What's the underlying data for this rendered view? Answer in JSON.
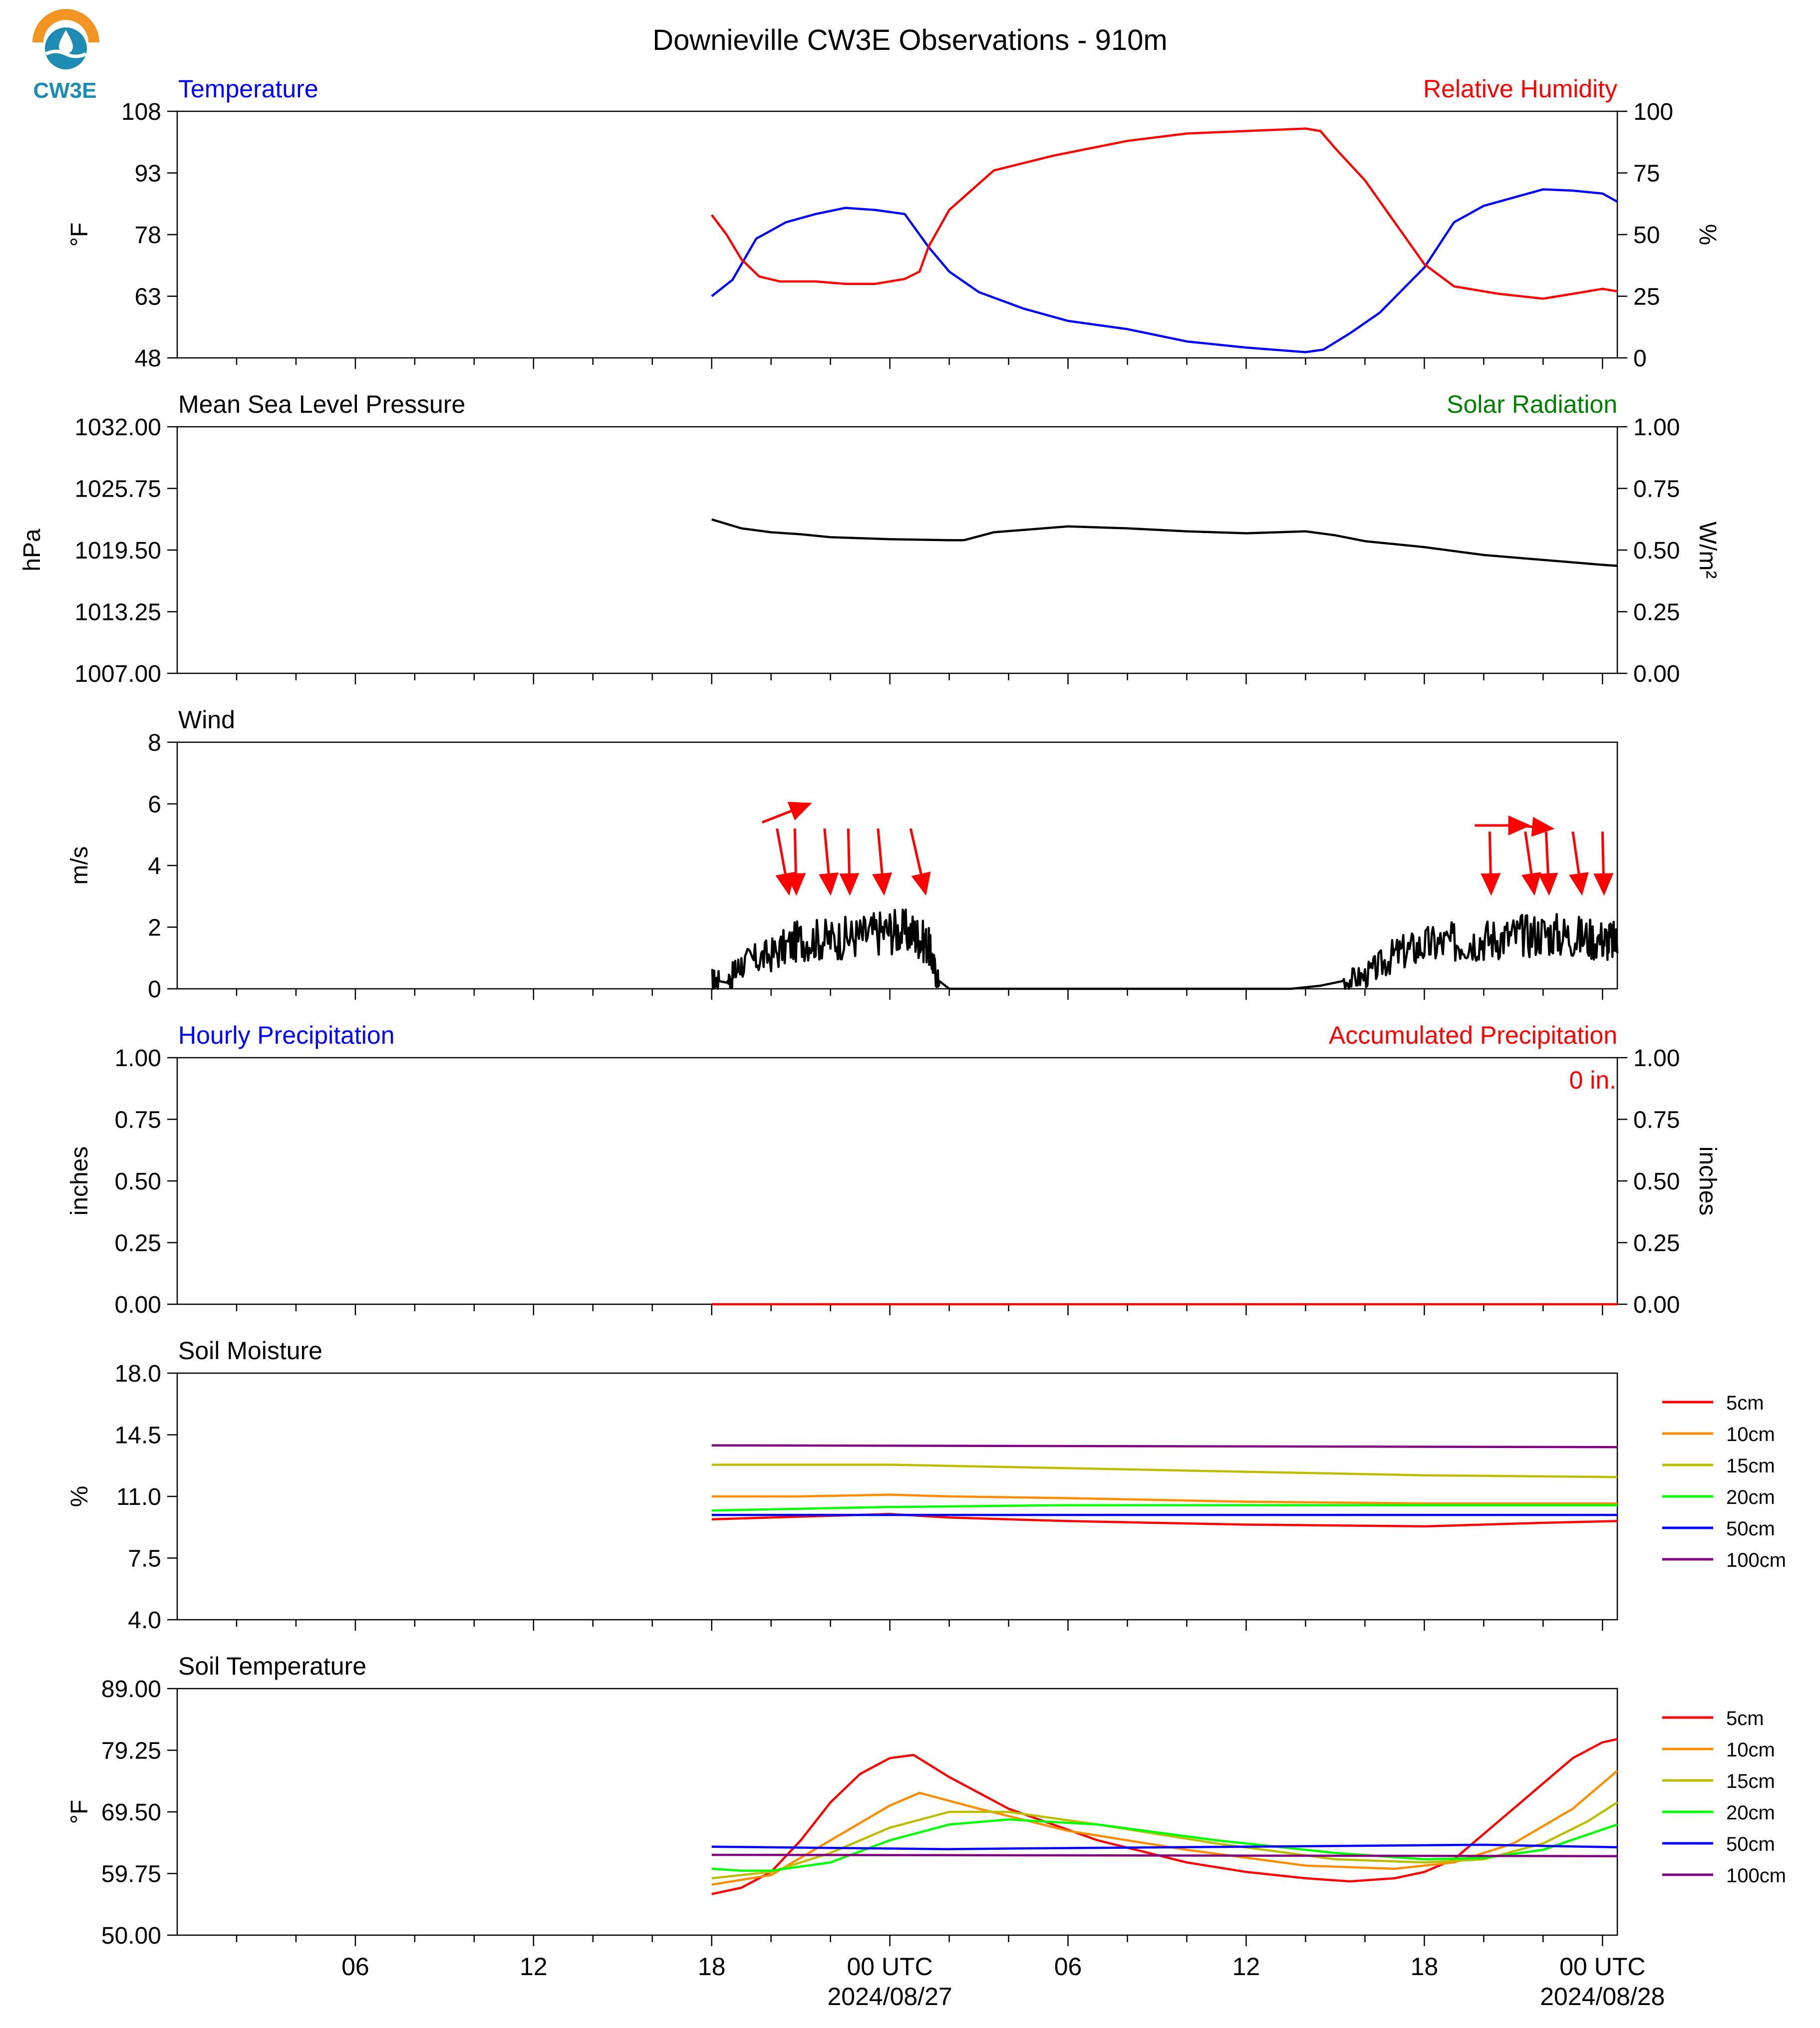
{
  "title": "Downieville CW3E Observations - 910m",
  "logo_text": "CW3E",
  "colors": {
    "temp": "#0000ff",
    "rh": "#ff0000",
    "black": "#000000",
    "solar": "#008000",
    "hourly": "#0000ff",
    "accum": "#ff0000",
    "arrow": "#ff0000",
    "d5": "#ff0000",
    "d10": "#ff8c00",
    "d15": "#bdbd00",
    "d20": "#00ff00",
    "d50": "#0000ff",
    "d100": "#800080",
    "logo_orange": "#f29424",
    "logo_blue": "#1d8bb2"
  },
  "x_axis": {
    "tick_labels": [
      "06",
      "12",
      "18",
      "00 UTC",
      "06",
      "12",
      "18",
      "00 UTC"
    ],
    "date_labels": [
      "2024/08/27",
      "2024/08/28"
    ]
  },
  "accum_label": "0 in.",
  "chart_data": [
    {
      "type": "line",
      "panel": "temperature-rh",
      "title_left": "Temperature",
      "title_right": "Relative Humidity",
      "ylabel": "°F",
      "ylabel_right": "%",
      "ylim": [
        48,
        108
      ],
      "yticks": [
        "108",
        "93",
        "78",
        "63",
        "48"
      ],
      "ylim_right": [
        0,
        100
      ],
      "yticks_right": [
        "100",
        "75",
        "50",
        "25",
        "0"
      ],
      "x_unit": "hours since 2024-08-26 00 UTC",
      "series": [
        {
          "name": "Temperature",
          "axis": "left",
          "x": [
            18,
            18.7,
            19.5,
            20.5,
            21.5,
            22.5,
            23.5,
            24.5,
            25.3,
            26,
            27,
            28.5,
            30,
            32,
            34,
            36,
            38,
            38.6,
            39.5,
            40.5,
            42,
            43,
            44,
            45,
            46,
            47,
            48,
            48.5
          ],
          "values": [
            63,
            67,
            77,
            81,
            83,
            84.5,
            84,
            83,
            75,
            69,
            64,
            60,
            57,
            55,
            52,
            50.5,
            49.4,
            50,
            54,
            59,
            70,
            81,
            85,
            87,
            89,
            88.7,
            88,
            86
          ]
        },
        {
          "name": "Relative Humidity",
          "axis": "right",
          "x": [
            18,
            18.5,
            19,
            19.6,
            20.3,
            21.5,
            22.5,
            23.5,
            24.5,
            25,
            25.3,
            26,
            27.5,
            29.5,
            32,
            34,
            36,
            38,
            38.5,
            39,
            40,
            41,
            42,
            43,
            44.5,
            46,
            47,
            48,
            48.5
          ],
          "values": [
            58,
            50,
            40,
            33,
            31,
            31,
            30,
            30,
            32,
            35,
            45,
            60,
            76,
            82,
            88,
            91,
            92,
            93,
            92,
            85,
            72,
            55,
            38,
            29,
            26,
            24,
            26,
            28,
            27
          ]
        }
      ]
    },
    {
      "type": "line",
      "panel": "pressure-solar",
      "title_left": "Mean Sea Level Pressure",
      "title_right": "Solar Radiation",
      "ylabel": "hPa",
      "ylabel_right": "W/m²",
      "ylim": [
        1007,
        1032
      ],
      "yticks": [
        "1032.00",
        "1025.75",
        "1019.50",
        "1013.25",
        "1007.00"
      ],
      "ylim_right": [
        0,
        1
      ],
      "yticks_right": [
        "1.00",
        "0.75",
        "0.50",
        "0.25",
        "0.00"
      ],
      "series": [
        {
          "name": "Mean Sea Level Pressure",
          "x": [
            18,
            19,
            20,
            21,
            22,
            24,
            26,
            26.5,
            27.5,
            30,
            32,
            34,
            36,
            38,
            39,
            40,
            42,
            44,
            46,
            48,
            48.5
          ],
          "values": [
            1022.6,
            1021.7,
            1021.3,
            1021.1,
            1020.8,
            1020.6,
            1020.5,
            1020.5,
            1021.3,
            1021.9,
            1021.7,
            1021.4,
            1021.2,
            1021.4,
            1021.0,
            1020.4,
            1019.8,
            1019.0,
            1018.5,
            1018.0,
            1017.9
          ]
        }
      ]
    },
    {
      "type": "line",
      "panel": "wind",
      "title_left": "Wind",
      "ylabel": "m/s",
      "ylim": [
        0,
        8
      ],
      "yticks": [
        "8",
        "6",
        "4",
        "2",
        "0"
      ],
      "series": [
        {
          "name": "Wind",
          "x": [
            18,
            18.5,
            19,
            20,
            21,
            22,
            23,
            24,
            24.8,
            25.3,
            25.6,
            26,
            29,
            32,
            35,
            37.5,
            38.5,
            39,
            40,
            41,
            42,
            43,
            44,
            45,
            46,
            47,
            48,
            48.5
          ],
          "values": [
            0.3,
            0.2,
            0.8,
            1.1,
            1.6,
            1.6,
            1.7,
            1.9,
            1.8,
            1.4,
            0.3,
            0,
            0,
            0,
            0,
            0,
            0.1,
            0.2,
            0.4,
            1.1,
            1.4,
            1.5,
            1.6,
            1.7,
            1.8,
            1.7,
            1.6,
            1.5
          ]
        }
      ],
      "barbs": [
        {
          "x": 19.7,
          "y_from": 5.4,
          "y_to": 6.0,
          "dx": 1.6
        },
        {
          "x": 20.2,
          "y_from": 5.2,
          "y_to": 3.1,
          "dx": 0.4
        },
        {
          "x": 20.8,
          "y_from": 5.2,
          "y_to": 3.1,
          "dx": 0.05
        },
        {
          "x": 21.8,
          "y_from": 5.2,
          "y_to": 3.1,
          "dx": 0.2
        },
        {
          "x": 22.6,
          "y_from": 5.2,
          "y_to": 3.1,
          "dx": 0.05
        },
        {
          "x": 23.6,
          "y_from": 5.2,
          "y_to": 3.1,
          "dx": 0.2
        },
        {
          "x": 24.7,
          "y_from": 5.2,
          "y_to": 3.1,
          "dx": 0.5
        },
        {
          "x": 18.5,
          "y_from": 5.4,
          "y_to": 6.0,
          "dx": 1.6,
          "skip": true
        },
        {
          "x": 43.7,
          "y_from": 5.3,
          "y_to": 5.3,
          "dx": 1.8
        },
        {
          "x": 45.1,
          "y_from": 5.3,
          "y_to": 5.2,
          "dx": 1.2
        },
        {
          "x": 44.2,
          "y_from": 5.1,
          "y_to": 3.1,
          "dx": 0.05
        },
        {
          "x": 45.4,
          "y_from": 5.1,
          "y_to": 3.1,
          "dx": 0.3
        },
        {
          "x": 46.1,
          "y_from": 5.1,
          "y_to": 3.1,
          "dx": 0.1
        },
        {
          "x": 47.0,
          "y_from": 5.1,
          "y_to": 3.1,
          "dx": 0.3
        },
        {
          "x": 48.0,
          "y_from": 5.1,
          "y_to": 3.1,
          "dx": 0.05
        }
      ]
    },
    {
      "type": "line",
      "panel": "precipitation",
      "title_left": "Hourly Precipitation",
      "title_right": "Accumulated Precipitation",
      "ylabel": "inches",
      "ylabel_right": "inches",
      "ylim": [
        0,
        1
      ],
      "yticks": [
        "1.00",
        "0.75",
        "0.50",
        "0.25",
        "0.00"
      ],
      "ylim_right": [
        0,
        1
      ],
      "yticks_right": [
        "1.00",
        "0.75",
        "0.50",
        "0.25",
        "0.00"
      ],
      "series": [
        {
          "name": "Accumulated Precipitation",
          "x": [
            18,
            48.5
          ],
          "values": [
            0,
            0
          ]
        }
      ]
    },
    {
      "type": "line",
      "panel": "soil-moisture",
      "title_left": "Soil Moisture",
      "ylabel": "%",
      "ylim": [
        4,
        18
      ],
      "yticks": [
        "18.0",
        "14.5",
        "11.0",
        "7.5",
        "4.0"
      ],
      "legend": [
        "5cm",
        "10cm",
        "15cm",
        "20cm",
        "50cm",
        "100cm"
      ],
      "series": [
        {
          "name": "5cm",
          "x": [
            18,
            20,
            24,
            26,
            30,
            36,
            42,
            46,
            48.5
          ],
          "values": [
            9.7,
            9.8,
            10.0,
            9.8,
            9.6,
            9.4,
            9.3,
            9.5,
            9.6
          ]
        },
        {
          "name": "10cm",
          "x": [
            18,
            21,
            24,
            26,
            30,
            36,
            42,
            48.5
          ],
          "values": [
            11.0,
            11.0,
            11.1,
            11.0,
            10.9,
            10.7,
            10.6,
            10.6
          ]
        },
        {
          "name": "15cm",
          "x": [
            18,
            21,
            24,
            27,
            30,
            36,
            42,
            48.5
          ],
          "values": [
            12.8,
            12.8,
            12.8,
            12.7,
            12.6,
            12.4,
            12.2,
            12.1
          ]
        },
        {
          "name": "20cm",
          "x": [
            18,
            21,
            24,
            30,
            36,
            42,
            48.5
          ],
          "values": [
            10.2,
            10.3,
            10.4,
            10.5,
            10.5,
            10.5,
            10.5
          ]
        },
        {
          "name": "50cm",
          "x": [
            18,
            48.5
          ],
          "values": [
            9.95,
            9.95
          ]
        },
        {
          "name": "100cm",
          "x": [
            18,
            48.5
          ],
          "values": [
            13.9,
            13.8
          ]
        }
      ]
    },
    {
      "type": "line",
      "panel": "soil-temperature",
      "title_left": "Soil Temperature",
      "ylabel": "°F",
      "ylim": [
        50,
        89
      ],
      "yticks": [
        "89.00",
        "79.25",
        "69.50",
        "59.75",
        "50.00"
      ],
      "legend": [
        "5cm",
        "10cm",
        "15cm",
        "20cm",
        "50cm",
        "100cm"
      ],
      "series": [
        {
          "name": "5cm",
          "x": [
            18,
            19,
            20,
            21,
            22,
            23,
            24,
            24.8,
            26,
            28,
            31,
            34,
            36,
            38,
            39.5,
            41,
            42,
            43,
            44,
            45,
            46,
            47,
            48,
            48.5
          ],
          "values": [
            56.5,
            57.5,
            60,
            65,
            71,
            75.5,
            78,
            78.5,
            75,
            70,
            65,
            61.5,
            60,
            59,
            58.5,
            59,
            60,
            62,
            66,
            70,
            74,
            78,
            80.5,
            81
          ]
        },
        {
          "name": "10cm",
          "x": [
            18,
            20,
            22,
            24,
            25,
            27,
            30,
            34,
            38,
            41,
            43,
            45,
            47,
            48.5
          ],
          "values": [
            58,
            59.5,
            65,
            70.5,
            72.5,
            70,
            66.5,
            63.5,
            61,
            60.5,
            61.5,
            64.5,
            70,
            76
          ]
        },
        {
          "name": "15cm",
          "x": [
            18,
            20,
            22,
            24,
            26,
            28,
            31,
            35,
            39,
            42,
            44,
            46,
            47.5,
            48.5
          ],
          "values": [
            59,
            60,
            63,
            67,
            69.5,
            69.5,
            67.5,
            64.5,
            62,
            61.5,
            62,
            64.5,
            68,
            71
          ]
        },
        {
          "name": "20cm",
          "x": [
            18,
            19,
            20,
            22,
            24,
            26,
            28,
            31,
            35,
            39,
            42,
            44,
            46,
            48.5
          ],
          "values": [
            60.5,
            60.2,
            60.2,
            61.5,
            65,
            67.5,
            68.3,
            67.5,
            65,
            63,
            62,
            62.2,
            63.5,
            67.5
          ]
        },
        {
          "name": "50cm",
          "x": [
            18,
            26,
            28,
            36,
            44,
            48.5
          ],
          "values": [
            64,
            63.6,
            63.7,
            64,
            64.3,
            63.9
          ]
        },
        {
          "name": "100cm",
          "x": [
            18,
            48.5
          ],
          "values": [
            62.7,
            62.5
          ]
        }
      ]
    }
  ]
}
